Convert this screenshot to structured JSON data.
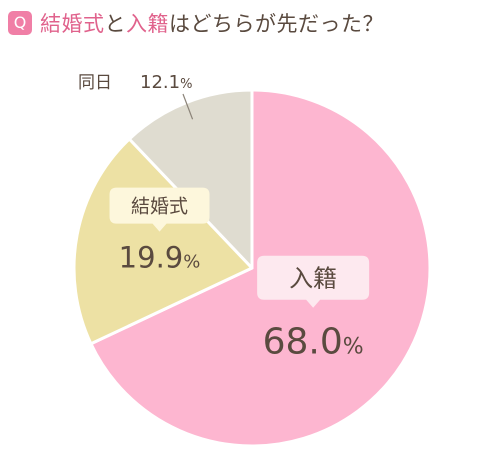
{
  "header": {
    "badge": "Q",
    "title_part1": "結婚式",
    "title_part2": "と",
    "title_part3": "入籍",
    "title_part4": "はどちらが先だった？"
  },
  "colors": {
    "accent": "#e0628c",
    "text": "#5a4a3f"
  },
  "chart_data": {
    "type": "pie",
    "title": "結婚式と入籍はどちらが先だった？",
    "slices": [
      {
        "label": "入籍",
        "value": 68.0,
        "display": "68.0",
        "unit": "%",
        "color": "#fdb6d0",
        "label_bg": "#fde9ef"
      },
      {
        "label": "結婚式",
        "value": 19.9,
        "display": "19.9",
        "unit": "%",
        "color": "#ede1a4",
        "label_bg": "#fdf7dc"
      },
      {
        "label": "同日",
        "value": 12.1,
        "display": "12.1",
        "unit": "%",
        "color": "#dfdcd0",
        "label_bg": ""
      }
    ],
    "start": "12 o'clock",
    "direction": "clockwise"
  }
}
